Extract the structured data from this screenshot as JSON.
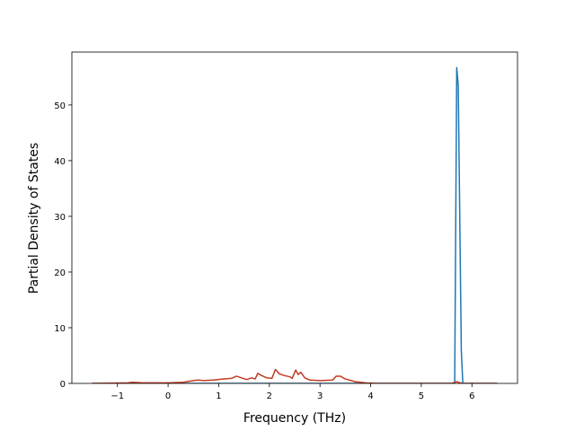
{
  "chart_data": {
    "type": "line",
    "x_label": "Frequency (THz)",
    "y_label": "Partial Density of States",
    "xlim": [
      -1.9,
      6.9
    ],
    "ylim": [
      0,
      59.5
    ],
    "xticks": [
      {
        "value": -1,
        "label": "−1"
      },
      0,
      1,
      2,
      3,
      4,
      5,
      6
    ],
    "yticks": [
      0,
      10,
      20,
      30,
      40,
      50
    ],
    "series": [
      {
        "color": "#1f77b4",
        "x": [
          -1.5,
          5.6,
          5.66,
          5.7,
          5.73,
          5.79,
          5.82,
          6.5
        ],
        "values": [
          0,
          0,
          0,
          56.7,
          53.5,
          6,
          0,
          0
        ]
      },
      {
        "color": "#c23b22",
        "x": [
          -1.5,
          -0.8,
          -0.7,
          -0.5,
          0,
          0.3,
          0.5,
          0.6,
          0.7,
          0.9,
          1.1,
          1.25,
          1.35,
          1.45,
          1.55,
          1.65,
          1.72,
          1.77,
          1.85,
          1.95,
          2.05,
          2.12,
          2.2,
          2.3,
          2.4,
          2.45,
          2.52,
          2.57,
          2.62,
          2.7,
          2.8,
          3.0,
          3.25,
          3.32,
          3.4,
          3.5,
          3.7,
          3.9,
          4.1,
          5.6,
          5.7,
          5.8,
          6.5
        ],
        "values": [
          0,
          0.1,
          0.2,
          0.1,
          0.1,
          0.2,
          0.5,
          0.6,
          0.5,
          0.6,
          0.8,
          0.9,
          1.3,
          1.0,
          0.7,
          1.0,
          0.8,
          1.8,
          1.4,
          1.0,
          0.9,
          2.5,
          1.7,
          1.4,
          1.2,
          0.9,
          2.4,
          1.6,
          2.0,
          1.0,
          0.6,
          0.5,
          0.6,
          1.3,
          1.3,
          0.8,
          0.3,
          0.1,
          0,
          0,
          0.3,
          0,
          0
        ]
      }
    ]
  }
}
